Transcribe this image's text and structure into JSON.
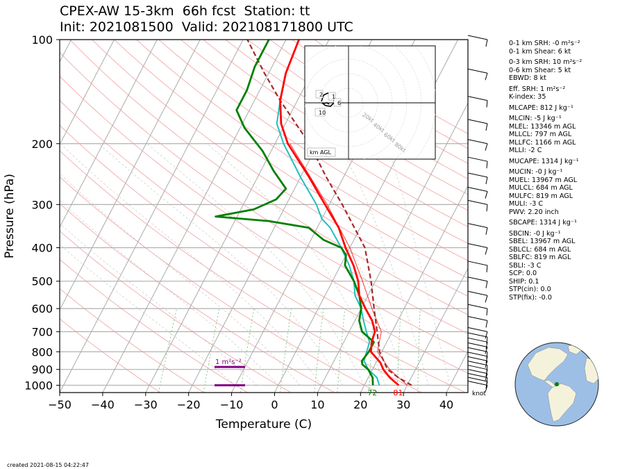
{
  "header": {
    "title_line1": "CPEX-AW 15-3km  66h fcst  Station: tt",
    "title_line2": "Init: 2021081500  Valid: 2021081718​00 UTC"
  },
  "chart_data": {
    "type": "skew-t",
    "xlabel": "Temperature (C)",
    "ylabel": "Pressure (hPa)",
    "xlim": [
      -50,
      45
    ],
    "ylim": [
      1050,
      100
    ],
    "y_scale": "log",
    "x_ticks": [
      -50,
      -40,
      -30,
      -20,
      -10,
      0,
      10,
      20,
      30,
      40
    ],
    "y_ticks": [
      1000,
      900,
      800,
      700,
      600,
      500,
      400,
      300,
      200,
      100
    ],
    "temperature": {
      "color": "#ff0000",
      "points": [
        [
          1000,
          28
        ],
        [
          950,
          25
        ],
        [
          900,
          22.5
        ],
        [
          860,
          21
        ],
        [
          800,
          17.5
        ],
        [
          750,
          16.5
        ],
        [
          700,
          16
        ],
        [
          650,
          14
        ],
        [
          600,
          11
        ],
        [
          550,
          8
        ],
        [
          500,
          6
        ],
        [
          450,
          3
        ],
        [
          400,
          -1
        ],
        [
          350,
          -5
        ],
        [
          300,
          -11
        ],
        [
          250,
          -18
        ],
        [
          200,
          -27
        ],
        [
          175,
          -31
        ],
        [
          150,
          -34
        ],
        [
          125,
          -36
        ],
        [
          100,
          -37
        ]
      ]
    },
    "virtual_temperature": {
      "color": "#ff0000",
      "points": [
        [
          1000,
          30
        ],
        [
          900,
          24
        ],
        [
          800,
          19
        ],
        [
          700,
          17.5
        ],
        [
          600,
          12.5
        ],
        [
          500,
          7
        ],
        [
          400,
          0
        ],
        [
          300,
          -10.5
        ],
        [
          200,
          -26.5
        ]
      ]
    },
    "wet_bulb": {
      "color": "#1fbfbf",
      "points": [
        [
          1000,
          23.5
        ],
        [
          950,
          22
        ],
        [
          900,
          19
        ],
        [
          850,
          17
        ],
        [
          800,
          16.5
        ],
        [
          750,
          16
        ],
        [
          700,
          14
        ],
        [
          650,
          12
        ],
        [
          600,
          10
        ],
        [
          550,
          7
        ],
        [
          500,
          5
        ],
        [
          450,
          2
        ],
        [
          400,
          -2
        ],
        [
          350,
          -7
        ],
        [
          330,
          -10
        ],
        [
          300,
          -13
        ],
        [
          250,
          -20
        ],
        [
          200,
          -28
        ],
        [
          175,
          -32
        ],
        [
          150,
          -34
        ],
        [
          125,
          -36
        ],
        [
          100,
          -37
        ]
      ]
    },
    "dewpoint": {
      "color": "#008000",
      "points": [
        [
          1000,
          22
        ],
        [
          950,
          21
        ],
        [
          900,
          19
        ],
        [
          870,
          17
        ],
        [
          850,
          16.5
        ],
        [
          800,
          17
        ],
        [
          750,
          17
        ],
        [
          700,
          13
        ],
        [
          650,
          11
        ],
        [
          600,
          10
        ],
        [
          550,
          8
        ],
        [
          500,
          5
        ],
        [
          450,
          1
        ],
        [
          420,
          0
        ],
        [
          400,
          -2
        ],
        [
          380,
          -7
        ],
        [
          350,
          -12
        ],
        [
          335,
          -22
        ],
        [
          325,
          -35
        ],
        [
          310,
          -27
        ],
        [
          290,
          -23
        ],
        [
          270,
          -22
        ],
        [
          240,
          -27
        ],
        [
          210,
          -32
        ],
        [
          180,
          -39
        ],
        [
          160,
          -43
        ],
        [
          140,
          -43
        ],
        [
          120,
          -44
        ],
        [
          100,
          -44
        ]
      ]
    },
    "parcel_path": {
      "color": "#a52a2a",
      "style": "dashed",
      "points": [
        [
          1000,
          31
        ],
        [
          950,
          27
        ],
        [
          900,
          23.5
        ],
        [
          800,
          19.5
        ],
        [
          700,
          16.5
        ],
        [
          600,
          13
        ],
        [
          500,
          9
        ],
        [
          400,
          3.5
        ],
        [
          300,
          -7
        ],
        [
          250,
          -14
        ],
        [
          200,
          -22
        ],
        [
          150,
          -34
        ],
        [
          125,
          -41
        ],
        [
          100,
          -49
        ]
      ]
    },
    "srh_bars": [
      {
        "label": "1 m²s⁻²",
        "pressure": 885
      },
      {
        "pressure": 1000
      }
    ],
    "surface_labels": [
      {
        "text": "72",
        "temp": 22.5,
        "color": "#008000"
      },
      {
        "text": "81",
        "temp": 28.5,
        "color": "#ff0000"
      }
    ],
    "wind_unit_label": "knot",
    "hodograph": {
      "label": "km AGL",
      "ring_labels": [
        "20kt",
        "40kt",
        "60kt",
        "80kt"
      ],
      "height_labels": [
        "1",
        "2",
        "6",
        "10"
      ]
    }
  },
  "stats": [
    "0-1 km SRH: -0 m²s⁻²",
    "0-1 km Shear: 6 kt",
    "0-3 km SRH: 10 m²s⁻²",
    "0-6 km Shear: 5 kt",
    "EBWD: 8 kt",
    "Eff. SRH: 1 m²s⁻²",
    "K-index: 35",
    "MLCAPE: 812 J kg⁻¹",
    "MLCIN: -5 J kg⁻¹",
    "MLEL: 13346 m AGL",
    "MLLCL: 797 m AGL",
    "MLLFC: 1166 m AGL",
    "MLLI: -2 C",
    "MUCAPE: 1314 J kg⁻¹",
    "MUCIN: -0 J kg⁻¹",
    "MUEL: 13967 m AGL",
    "MULCL: 684 m AGL",
    "MULFC: 819 m AGL",
    "MULI: -3 C",
    "PWV: 2.20 inch",
    "SBCAPE: 1314 J kg⁻¹",
    "SBCIN: -0 J kg⁻¹",
    "SBEL: 13967 m AGL",
    "SBLCL: 684 m AGL",
    "SBLFC: 819 m AGL",
    "SBLI: -3 C",
    "SCP: 0.0",
    "SHIP: 0.1",
    "STP(cin): 0.0",
    "STP(fix): -0.0"
  ],
  "footer": {
    "created": "created 2021-08-15 04:22:47"
  },
  "colors": {
    "ocean": "#9dbfe6",
    "land": "#f5f2dc",
    "station": "#008000",
    "srh_bar": "#800080"
  }
}
